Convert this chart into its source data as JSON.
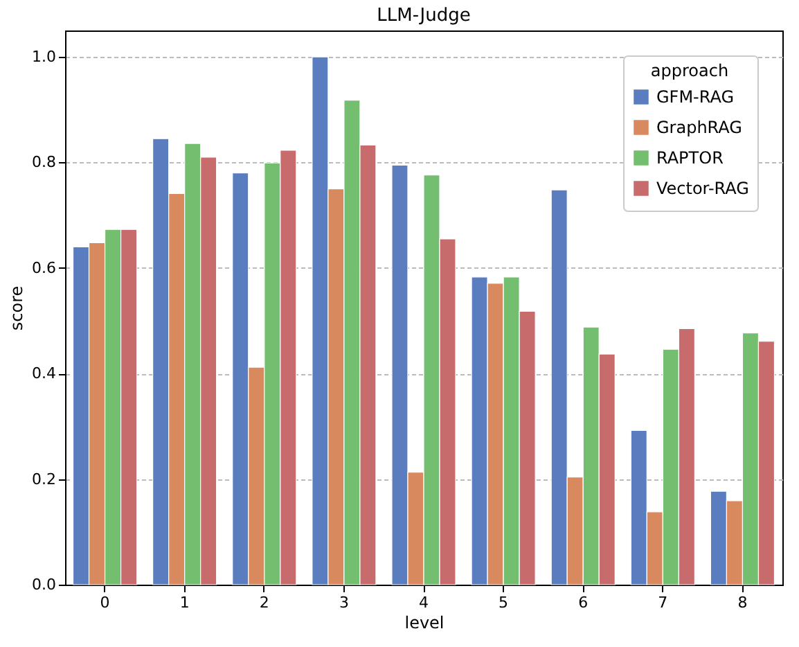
{
  "chart_data": {
    "type": "bar",
    "title": "LLM-Judge",
    "xlabel": "level",
    "ylabel": "score",
    "legend_title": "approach",
    "categories": [
      "0",
      "1",
      "2",
      "3",
      "4",
      "5",
      "6",
      "7",
      "8"
    ],
    "series": [
      {
        "name": "GFM-RAG",
        "color": "#5a7dc0",
        "values": [
          0.64,
          0.845,
          0.78,
          1.0,
          0.795,
          0.583,
          0.748,
          0.292,
          0.177
        ]
      },
      {
        "name": "GraphRAG",
        "color": "#d9895e",
        "values": [
          0.648,
          0.741,
          0.412,
          0.75,
          0.213,
          0.571,
          0.204,
          0.138,
          0.159
        ]
      },
      {
        "name": "RAPTOR",
        "color": "#74bf6f",
        "values": [
          0.673,
          0.836,
          0.799,
          0.918,
          0.776,
          0.583,
          0.488,
          0.446,
          0.477
        ]
      },
      {
        "name": "Vector-RAG",
        "color": "#c86b6c",
        "values": [
          0.673,
          0.81,
          0.823,
          0.833,
          0.655,
          0.518,
          0.437,
          0.485,
          0.461
        ]
      }
    ],
    "ylim": [
      0,
      1.05
    ],
    "yticks": [
      {
        "value": 0,
        "label": "0.0"
      },
      0.2,
      0.4,
      0.6,
      0.8,
      {
        "value": 1,
        "label": "1.0"
      }
    ],
    "grid": "y",
    "legend": "top right"
  }
}
